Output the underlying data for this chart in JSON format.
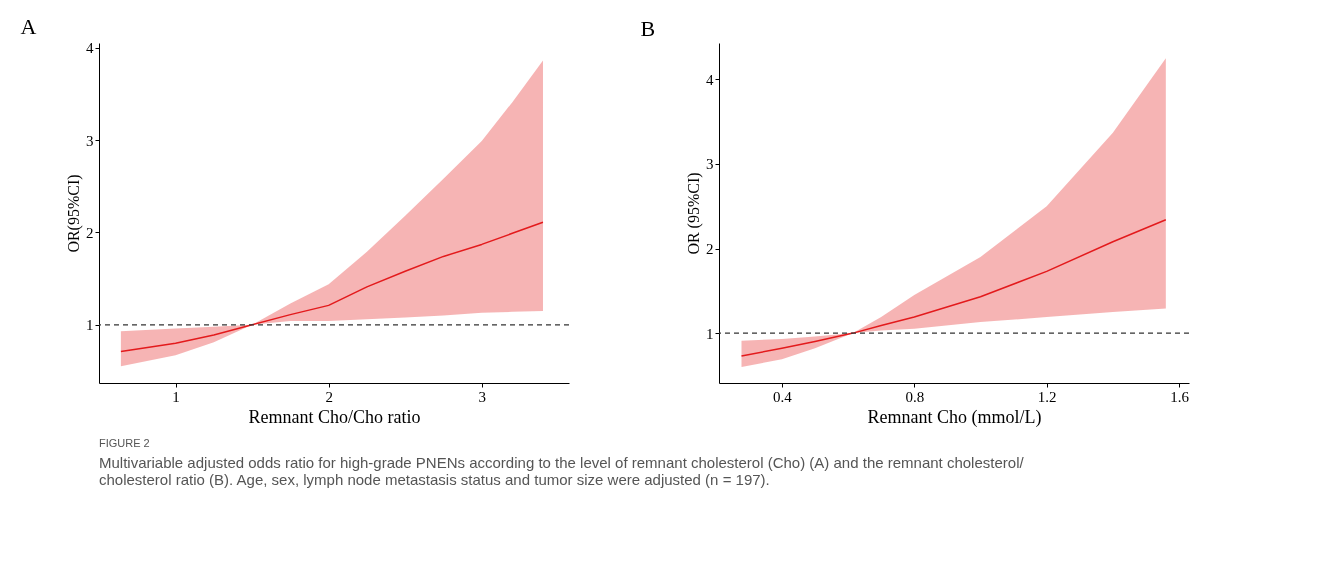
{
  "chart_data": [
    {
      "type": "line",
      "title": "A",
      "xlabel": "Remnant Cho/Cho ratio",
      "ylabel": "OR(95%CI)",
      "xlim": [
        0.5,
        3.57
      ],
      "ylim": [
        0.37,
        4.05
      ],
      "xticks": [
        1,
        2,
        3
      ],
      "yticks": [
        1,
        2,
        3,
        4
      ],
      "grid": false,
      "legend": false,
      "series": [
        {
          "color": "#e31a1c",
          "x": [
            0.643,
            1,
            1.25,
            1.5,
            1.75,
            2,
            2.25,
            2.5,
            2.75,
            3,
            3.2,
            3.4
          ],
          "values": [
            0.71,
            0.8,
            0.89,
            1,
            1.11,
            1.21,
            1.41,
            1.58,
            1.74,
            1.87,
            1.99,
            2.11
          ],
          "lower": [
            0.55,
            0.67,
            0.81,
            1,
            1.04,
            1.04,
            1.06,
            1.08,
            1.1,
            1.13,
            1.14,
            1.15
          ],
          "upper": [
            0.93,
            0.96,
            0.98,
            1,
            1.23,
            1.44,
            1.79,
            2.18,
            2.58,
            2.99,
            3.41,
            3.86
          ]
        }
      ],
      "ref_lines": [
        {
          "axis": "y",
          "value": 1,
          "color": "#333333",
          "line_style": "dashed"
        }
      ],
      "annotations": [
        "FIGURE 2",
        "Multivariable adjusted odds ratio for high-grade PNENs according to the level of remnant cholesterol (Cho) (A) and the remnant cholesterol/ cholesterol ratio (B). Age, sex, lymph node metastasis status and tumor size were adjusted (n = 197)."
      ]
    },
    {
      "type": "line",
      "title": "B",
      "xlabel": "Remnant Cho (mmol/L)",
      "ylabel": "OR (95%CI)",
      "xlim": [
        0.21,
        1.63
      ],
      "ylim": [
        0.41,
        4.43
      ],
      "xticks": [
        0.4,
        0.8,
        1.2,
        1.6
      ],
      "yticks": [
        1,
        2,
        3,
        4
      ],
      "grid": false,
      "legend": false,
      "series": [
        {
          "color": "#e31a1c",
          "x": [
            0.278,
            0.4,
            0.5,
            0.615,
            0.7,
            0.8,
            1.0,
            1.2,
            1.4,
            1.56
          ],
          "values": [
            0.73,
            0.82,
            0.9,
            1,
            1.09,
            1.19,
            1.43,
            1.73,
            2.08,
            2.34
          ],
          "lower": [
            0.6,
            0.69,
            0.82,
            1,
            1.03,
            1.05,
            1.13,
            1.19,
            1.25,
            1.29
          ],
          "upper": [
            0.91,
            0.93,
            0.96,
            1,
            1.19,
            1.45,
            1.9,
            2.5,
            3.37,
            4.25
          ]
        }
      ],
      "ref_lines": [
        {
          "axis": "y",
          "value": 1,
          "color": "#333333",
          "line_style": "dashed"
        }
      ]
    }
  ]
}
